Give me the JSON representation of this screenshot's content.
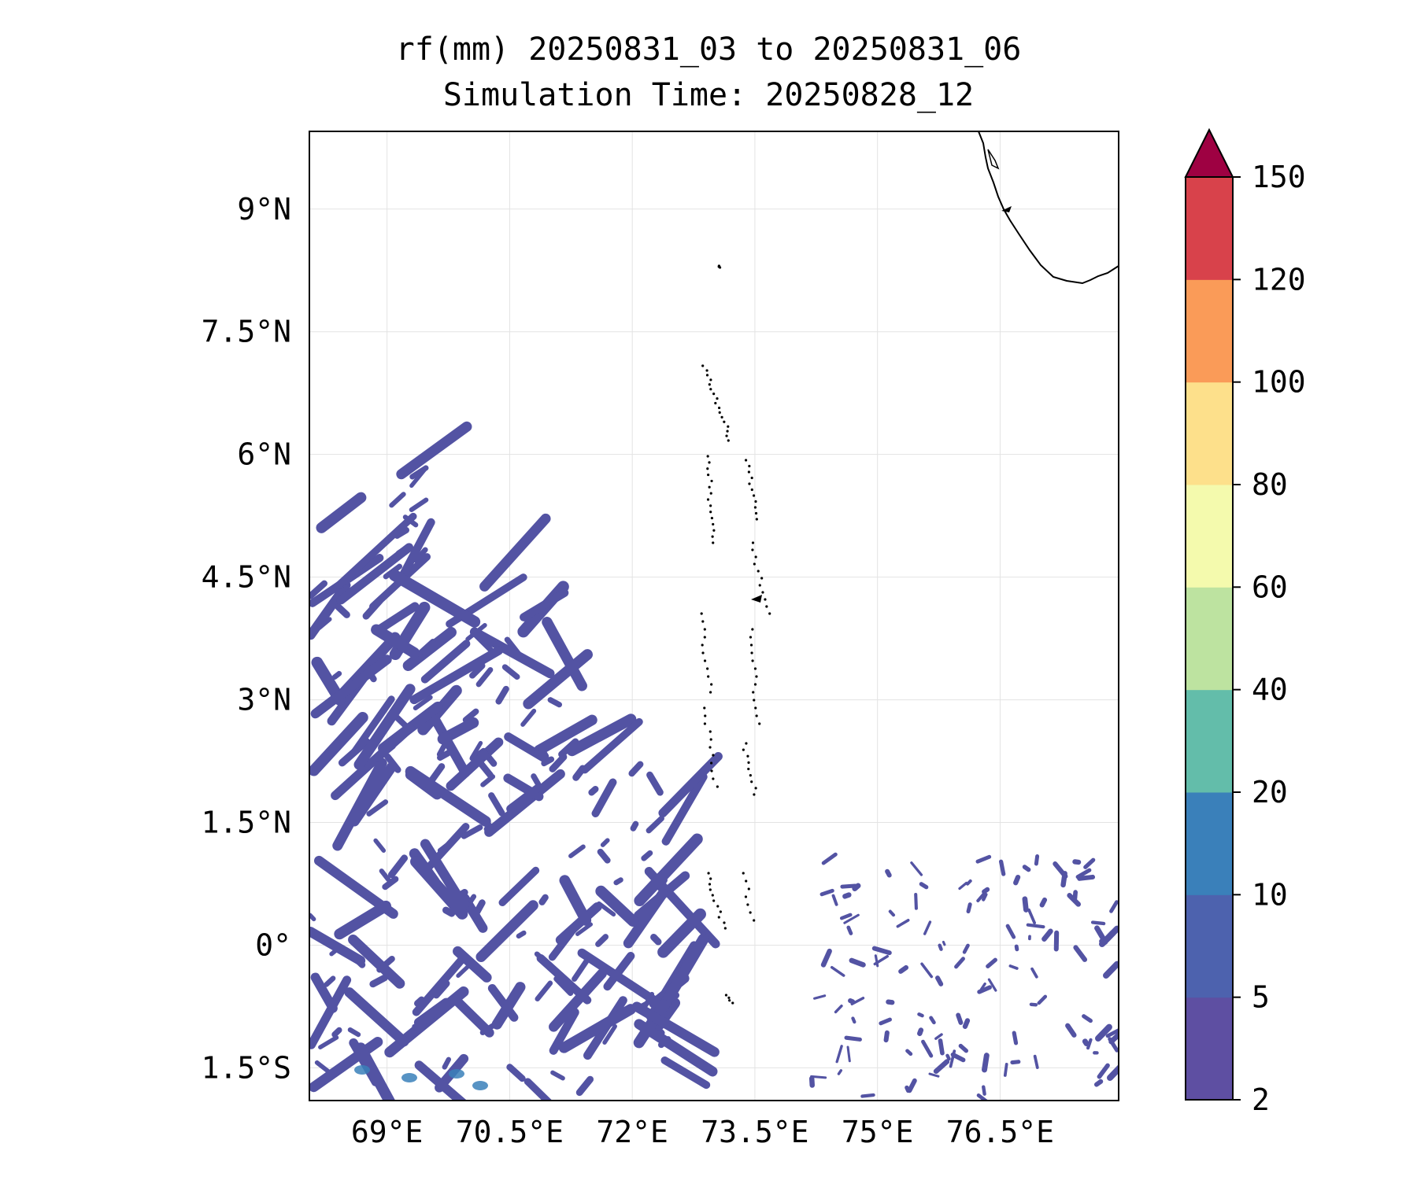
{
  "title_line1": "rf(mm) 20250831_03 to 20250831_06",
  "title_line2": "Simulation Time: 20250828_12",
  "map": {
    "lat_ticks": [
      "9°N",
      "7.5°N",
      "6°N",
      "4.5°N",
      "3°N",
      "1.5°N",
      "0°",
      "1.5°S"
    ],
    "lon_ticks": [
      "69°E",
      "70.5°E",
      "72°E",
      "73.5°E",
      "75°E",
      "76.5°E"
    ],
    "lat_values": [
      9,
      7.5,
      6,
      4.5,
      3,
      1.5,
      0,
      -1.5
    ],
    "lon_values": [
      69,
      70.5,
      72,
      73.5,
      75,
      76.5
    ],
    "lon_range": [
      68.05,
      77.95
    ],
    "lat_range": [
      -1.9,
      9.95
    ],
    "gridlines": true
  },
  "colorbar": {
    "levels": [
      "2",
      "5",
      "10",
      "20",
      "40",
      "60",
      "80",
      "100",
      "120",
      "150"
    ],
    "colors": [
      "#5e4fa2",
      "#4d62ae",
      "#3a80ba",
      "#63bdaa",
      "#bde3a0",
      "#f4faad",
      "#fde08b",
      "#fa9b58",
      "#d8424b"
    ],
    "extend_color": "#9e0142",
    "extend": "max"
  },
  "rain_color": "#5353a3",
  "coast_color": "#000000"
}
